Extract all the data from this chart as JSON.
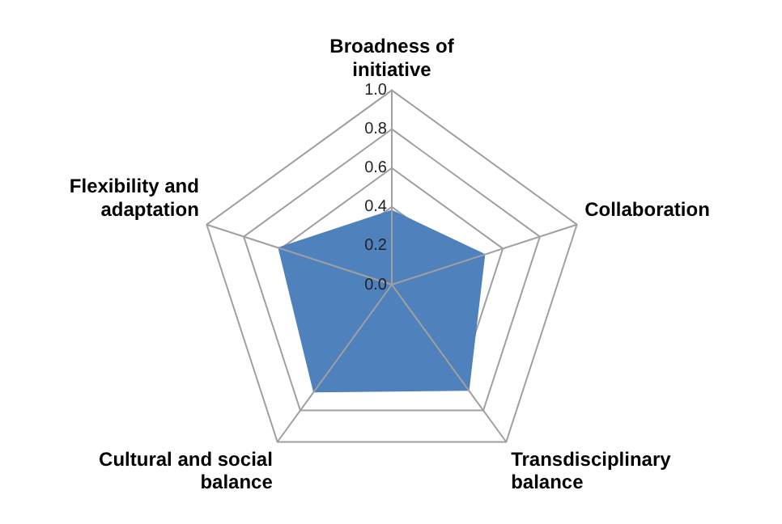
{
  "chart_data": {
    "type": "radar",
    "categories": [
      "Broadness of initiative",
      "Collaboration",
      "Transdisciplinary balance",
      "Cultural and social balance",
      "Flexibility and adaptation"
    ],
    "series": [
      {
        "color": "#4f81bd",
        "values": [
          0.38,
          0.5,
          0.67,
          0.68,
          0.61
        ]
      }
    ],
    "ylim": [
      0,
      1
    ],
    "yticks": [
      {
        "value": 0,
        "label": "0.0"
      },
      {
        "value": 0.2,
        "label": "0.2"
      },
      {
        "value": 0.4,
        "label": "0.4"
      },
      {
        "value": 0.6,
        "label": "0.6"
      },
      {
        "value": 0.8,
        "label": "0.8"
      },
      {
        "value": 1,
        "label": "1.0"
      }
    ],
    "grid": true,
    "legend": false,
    "marker": "none"
  }
}
